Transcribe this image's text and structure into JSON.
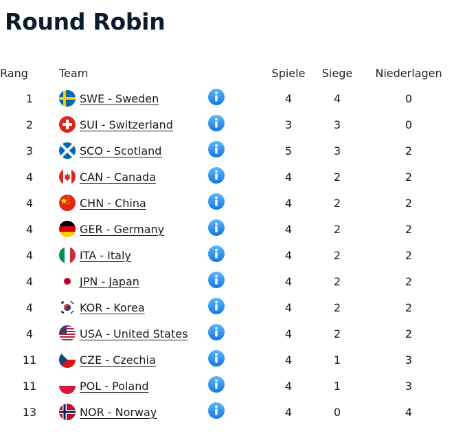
{
  "title": "Round Robin",
  "headers": {
    "rank": "Rang",
    "team": "Team",
    "games": "Spiele",
    "wins": "Siege",
    "losses": "Niederlagen"
  },
  "rows": [
    {
      "rank": "1",
      "team": "SWE - Sweden",
      "flag": "flag-sweden-icon",
      "games": "4",
      "wins": "4",
      "losses": "0"
    },
    {
      "rank": "2",
      "team": "SUI - Switzerland",
      "flag": "flag-switzerland-icon",
      "games": "3",
      "wins": "3",
      "losses": "0"
    },
    {
      "rank": "3",
      "team": "SCO - Scotland",
      "flag": "flag-scotland-icon",
      "games": "5",
      "wins": "3",
      "losses": "2"
    },
    {
      "rank": "4",
      "team": "CAN - Canada",
      "flag": "flag-canada-icon",
      "games": "4",
      "wins": "2",
      "losses": "2"
    },
    {
      "rank": "4",
      "team": "CHN - China",
      "flag": "flag-china-icon",
      "games": "4",
      "wins": "2",
      "losses": "2"
    },
    {
      "rank": "4",
      "team": "GER - Germany",
      "flag": "flag-germany-icon",
      "games": "4",
      "wins": "2",
      "losses": "2"
    },
    {
      "rank": "4",
      "team": "ITA - Italy",
      "flag": "flag-italy-icon",
      "games": "4",
      "wins": "2",
      "losses": "2"
    },
    {
      "rank": "4",
      "team": "JPN - Japan",
      "flag": "flag-japan-icon",
      "games": "4",
      "wins": "2",
      "losses": "2"
    },
    {
      "rank": "4",
      "team": "KOR - Korea",
      "flag": "flag-korea-icon",
      "games": "4",
      "wins": "2",
      "losses": "2"
    },
    {
      "rank": "4",
      "team": "USA - United States",
      "flag": "flag-usa-icon",
      "games": "4",
      "wins": "2",
      "losses": "2"
    },
    {
      "rank": "11",
      "team": "CZE - Czechia",
      "flag": "flag-czechia-icon",
      "games": "4",
      "wins": "1",
      "losses": "3"
    },
    {
      "rank": "11",
      "team": "POL - Poland",
      "flag": "flag-poland-icon",
      "games": "4",
      "wins": "1",
      "losses": "3"
    },
    {
      "rank": "13",
      "team": "NOR - Norway",
      "flag": "flag-norway-icon",
      "games": "4",
      "wins": "0",
      "losses": "4"
    }
  ],
  "info_icon": "info-icon",
  "colors": {
    "title": "#0b1a2e",
    "info_blue": "#1e90ff"
  }
}
